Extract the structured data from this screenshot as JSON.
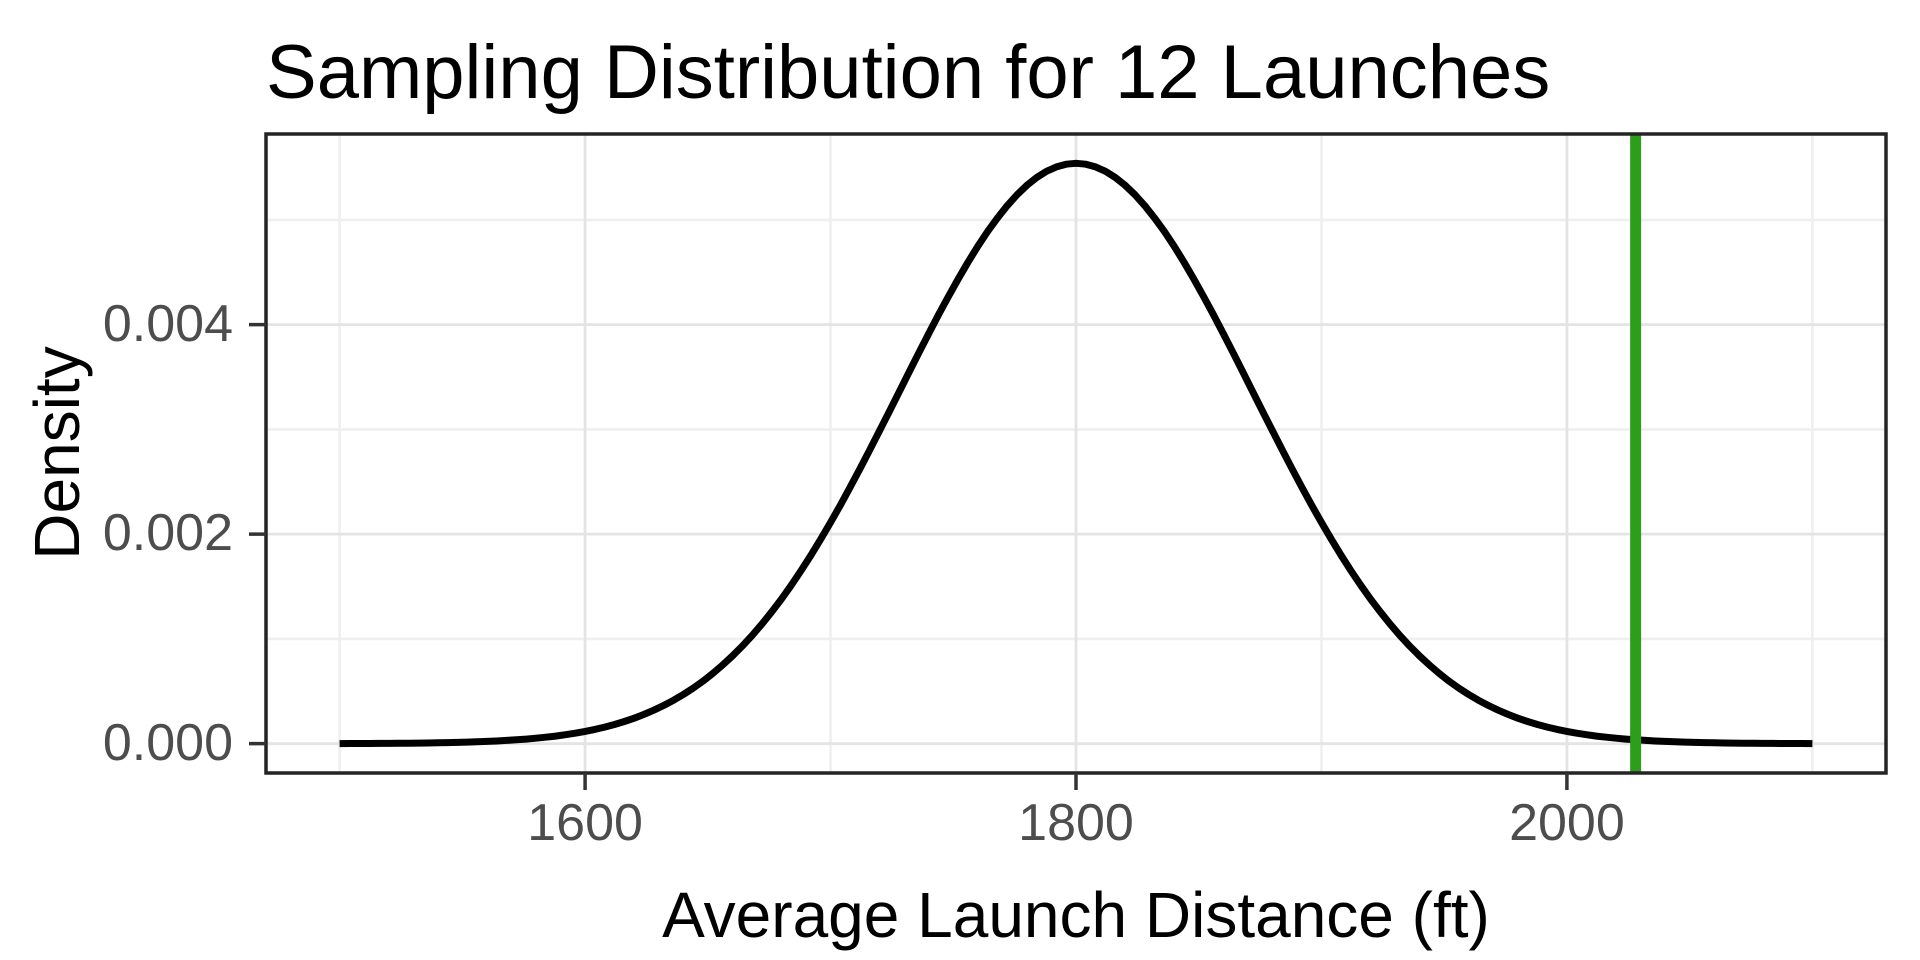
{
  "title": {
    "text": "Sampling Distribution for 12 Launches",
    "color": "#000000"
  },
  "axes": {
    "x": {
      "label": "Average Launch Distance (ft)",
      "tick_labels": [
        "1600",
        "1800",
        "2000"
      ],
      "tick_values": [
        1600,
        1800,
        2000
      ],
      "minor_values": [
        1500,
        1700,
        1900,
        2100
      ],
      "range": [
        1470,
        2130
      ]
    },
    "y": {
      "label": "Density",
      "tick_labels": [
        "0.000",
        "0.002",
        "0.004"
      ],
      "tick_values": [
        0,
        0.002,
        0.004
      ],
      "minor_values": [
        0.001,
        0.003,
        0.005
      ],
      "range": [
        -0.00028,
        0.00582
      ]
    }
  },
  "styles": {
    "background": "#FFFFFF",
    "panel_background": "#FFFFFF",
    "panel_border_color": "#242424",
    "grid_major_color": "#E4E4E4",
    "grid_minor_color": "#EFEFEF",
    "tick_mark_color": "#333333",
    "tick_label_color": "#4D4D4D",
    "curve_color": "#000000",
    "vline_color": "#2D9E1C"
  },
  "chart_data": {
    "type": "line",
    "subtype": "sampling-distribution-density",
    "title": "Sampling Distribution for 12 Launches",
    "xlabel": "Average Launch Distance (ft)",
    "ylabel": "Density",
    "xlim": [
      1470,
      2130
    ],
    "ylim": [
      -0.00028,
      0.00582
    ],
    "x_ticks": [
      1600,
      1800,
      2000
    ],
    "y_ticks": [
      0,
      0.002,
      0.004
    ],
    "grid": "major+minor",
    "legend": false,
    "series": [
      {
        "name": "density-curve",
        "shape": "normal",
        "mean": 1800,
        "sd": 72,
        "peak_density": 0.00554,
        "x_start": 1500,
        "x_end": 2100,
        "color": "#000000",
        "linewidth": 7,
        "points": [
          [
            1500,
            9e-07
          ],
          [
            1550,
            1.33e-05
          ],
          [
            1600,
            0.000117
          ],
          [
            1650,
            0.000632
          ],
          [
            1700,
            0.002112
          ],
          [
            1750,
            0.004353
          ],
          [
            1800,
            0.00554
          ],
          [
            1850,
            0.004353
          ],
          [
            1900,
            0.002112
          ],
          [
            1950,
            0.000632
          ],
          [
            2000,
            0.000117
          ],
          [
            2050,
            1.33e-05
          ],
          [
            2100,
            9e-07
          ]
        ]
      },
      {
        "name": "observed-mean-vline",
        "shape": "vline",
        "x": 2028,
        "color": "#2D9E1C",
        "linewidth": 11
      }
    ]
  }
}
